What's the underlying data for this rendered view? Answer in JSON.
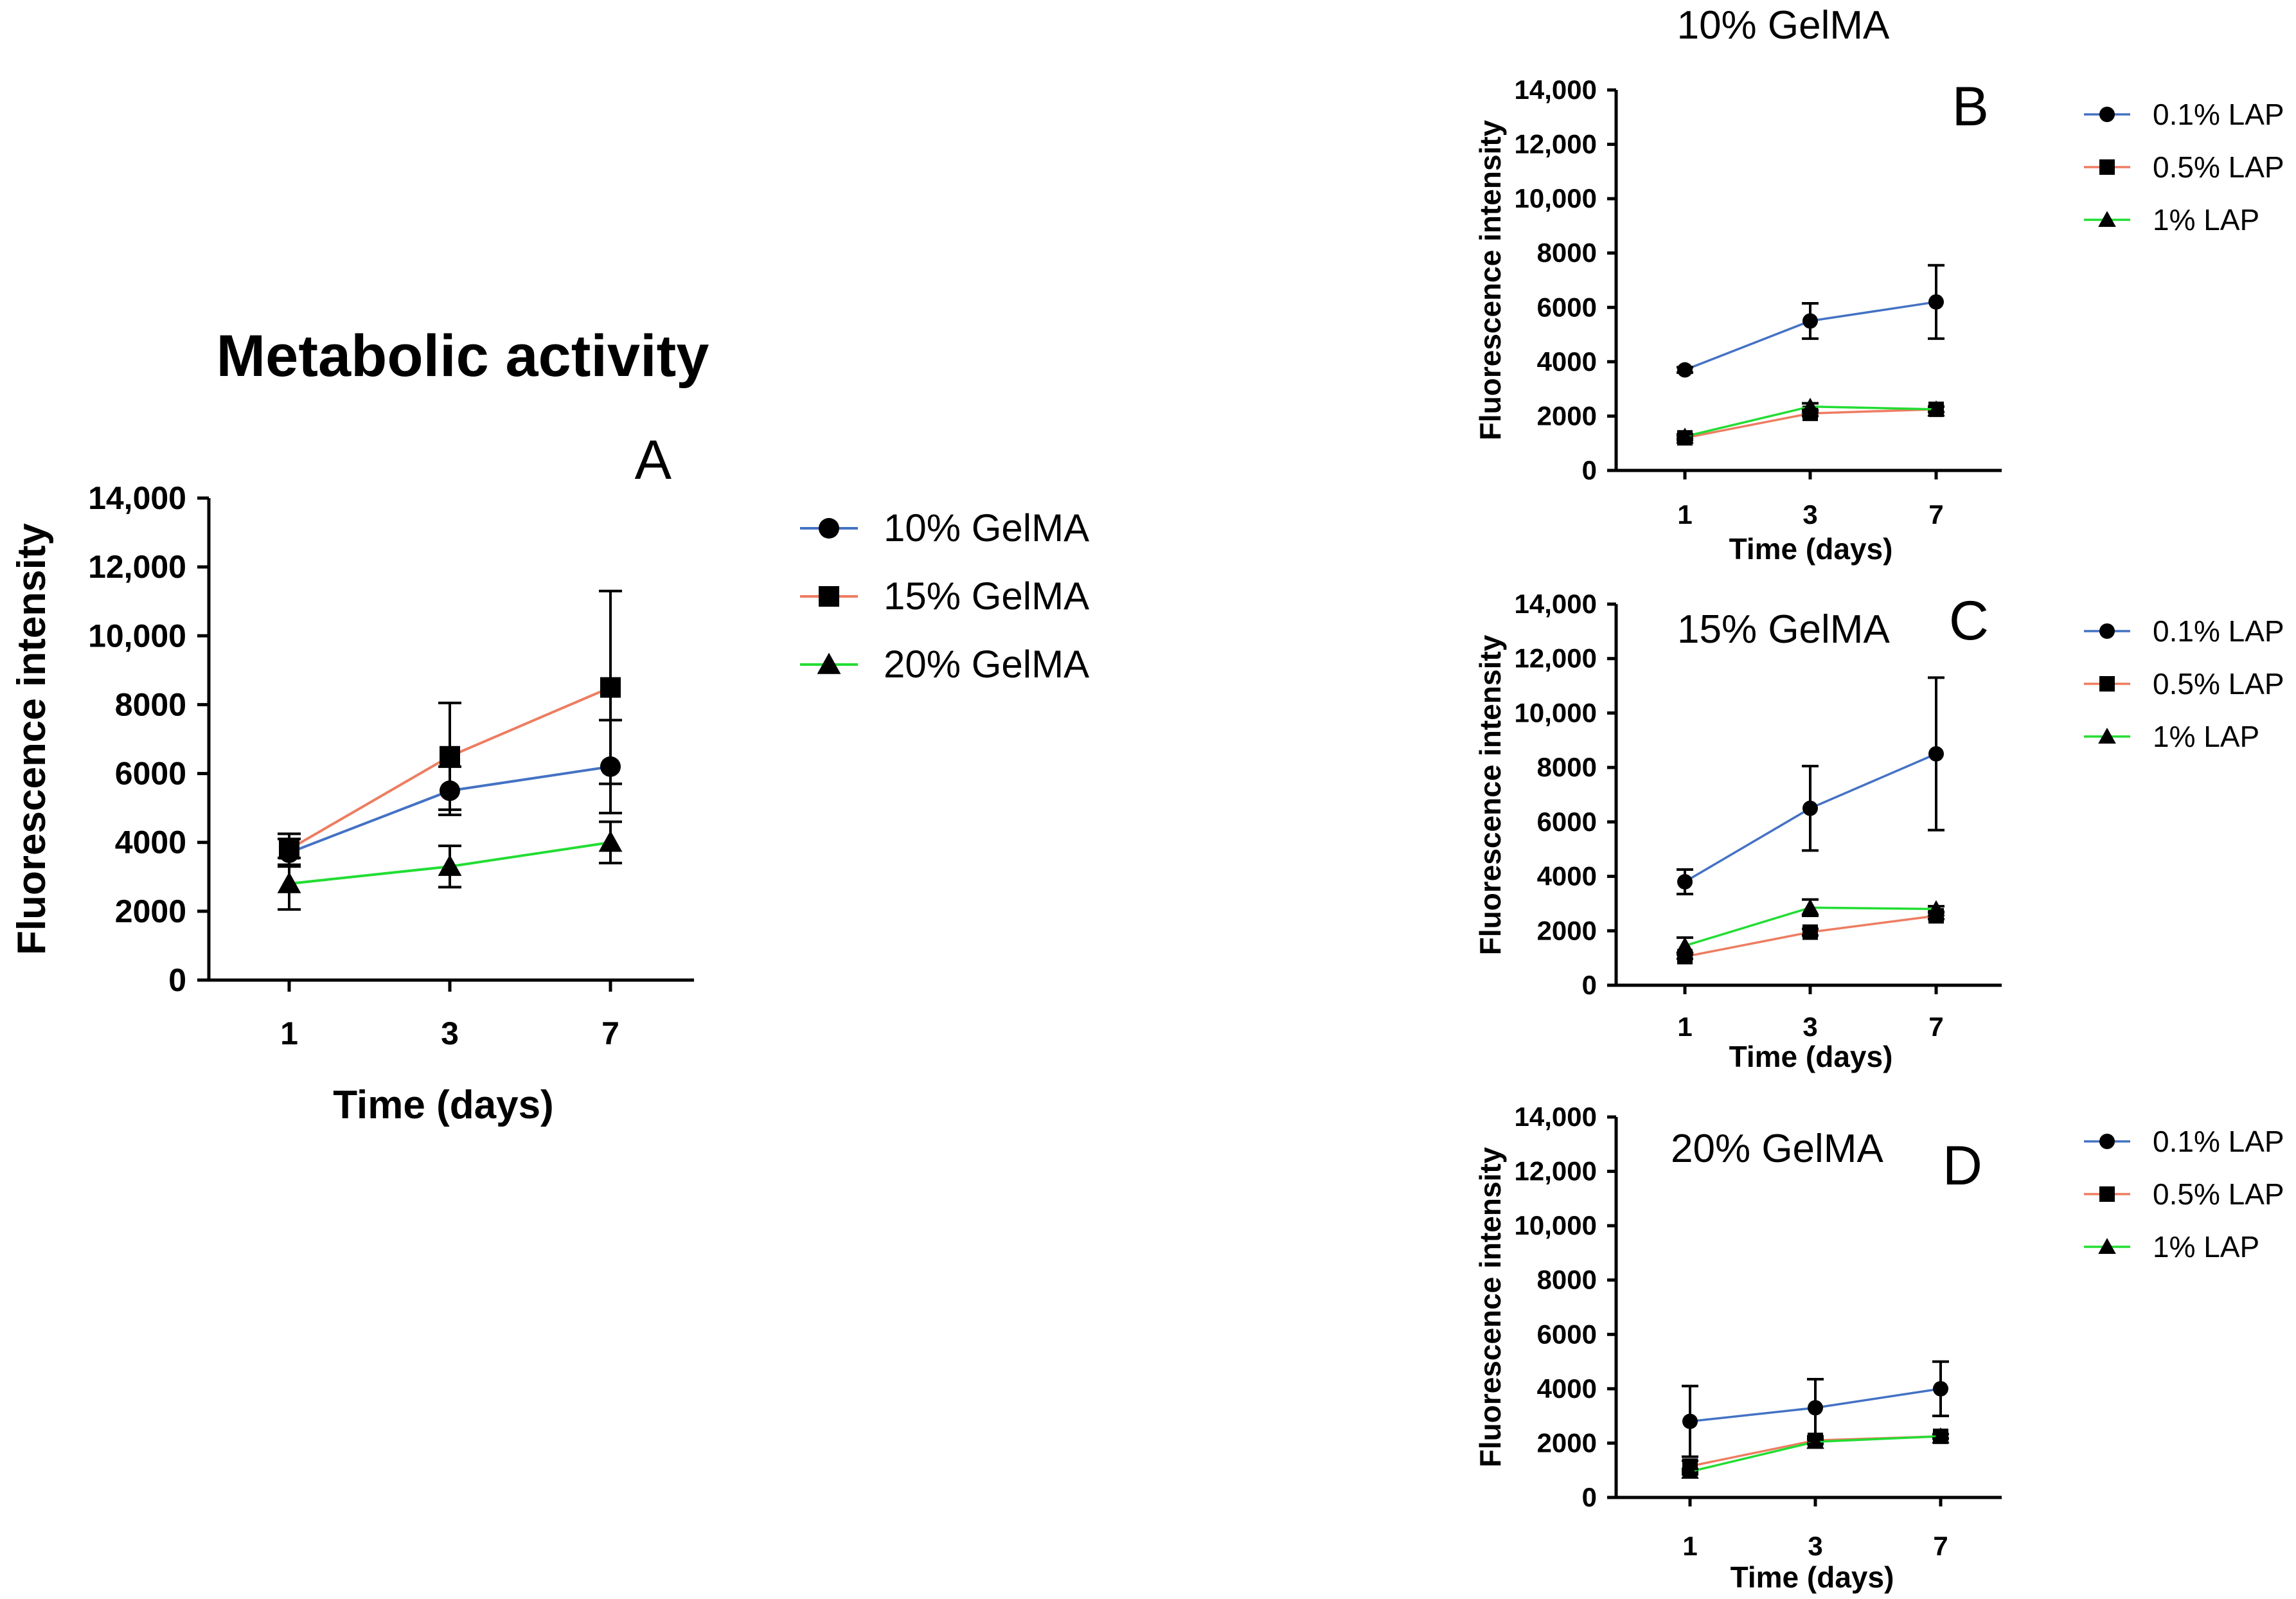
{
  "chart_data": [
    {
      "id": "A",
      "type": "line",
      "title": "Metabolic activity",
      "panel_label": "A",
      "xlabel": "Time (days)",
      "ylabel": "Fluorescence intensity",
      "categories": [
        "1",
        "3",
        "7"
      ],
      "ylim": [
        0,
        14000
      ],
      "yticks": [
        0,
        2000,
        4000,
        6000,
        8000,
        10000,
        12000,
        14000
      ],
      "ytick_labels": [
        "0",
        "2000",
        "4000",
        "6000",
        "8000",
        "10,000",
        "12,000",
        "14,000"
      ],
      "legend": "right",
      "series": [
        {
          "name": "10% GelMA",
          "color": "#4472c4",
          "marker": "circle",
          "values": [
            3700,
            5500,
            6200
          ],
          "errors": [
            400,
            700,
            1350
          ]
        },
        {
          "name": "15% GelMA",
          "color": "#ed7d61",
          "marker": "square",
          "values": [
            3800,
            6500,
            8500
          ],
          "errors": [
            450,
            1550,
            2800
          ]
        },
        {
          "name": "20% GelMA",
          "color": "#22dd33",
          "marker": "triangle",
          "values": [
            2800,
            3300,
            4000
          ],
          "errors": [
            750,
            600,
            600
          ]
        }
      ]
    },
    {
      "id": "B",
      "type": "line",
      "title": "10% GelMA",
      "panel_label": "B",
      "xlabel": "Time (days)",
      "ylabel": "Fluorescence intensity",
      "categories": [
        "1",
        "3",
        "7"
      ],
      "ylim": [
        0,
        14000
      ],
      "yticks": [
        0,
        2000,
        4000,
        6000,
        8000,
        10000,
        12000,
        14000
      ],
      "ytick_labels": [
        "0",
        "2000",
        "4000",
        "6000",
        "8000",
        "10,000",
        "12,000",
        "14,000"
      ],
      "legend": "right",
      "series": [
        {
          "name": "0.1% LAP",
          "color": "#4472c4",
          "marker": "circle",
          "values": [
            3700,
            5500,
            6200
          ],
          "errors": [
            100,
            650,
            1350
          ]
        },
        {
          "name": "0.5% LAP",
          "color": "#ed7d61",
          "marker": "square",
          "values": [
            1200,
            2100,
            2250
          ],
          "errors": [
            80,
            100,
            100
          ]
        },
        {
          "name": "1% LAP",
          "color": "#22dd33",
          "marker": "triangle",
          "values": [
            1250,
            2350,
            2250
          ],
          "errors": [
            80,
            120,
            100
          ]
        }
      ]
    },
    {
      "id": "C",
      "type": "line",
      "title": "15% GelMA",
      "panel_label": "C",
      "xlabel": "Time (days)",
      "ylabel": "Fluorescence intensity",
      "categories": [
        "1",
        "3",
        "7"
      ],
      "ylim": [
        0,
        14000
      ],
      "yticks": [
        0,
        2000,
        4000,
        6000,
        8000,
        10000,
        12000,
        14000
      ],
      "ytick_labels": [
        "0",
        "2000",
        "4000",
        "6000",
        "8000",
        "10,000",
        "12,000",
        "14,000"
      ],
      "legend": "right",
      "series": [
        {
          "name": "0.1% LAP",
          "color": "#4472c4",
          "marker": "circle",
          "values": [
            3800,
            6500,
            8500
          ],
          "errors": [
            450,
            1550,
            2800
          ]
        },
        {
          "name": "0.5% LAP",
          "color": "#ed7d61",
          "marker": "square",
          "values": [
            1050,
            1950,
            2550
          ],
          "errors": [
            80,
            120,
            120
          ]
        },
        {
          "name": "1% LAP",
          "color": "#22dd33",
          "marker": "triangle",
          "values": [
            1450,
            2850,
            2800
          ],
          "errors": [
            300,
            300,
            100
          ]
        }
      ]
    },
    {
      "id": "D",
      "type": "line",
      "title": "20% GelMA",
      "panel_label": "D",
      "xlabel": "Time (days)",
      "ylabel": "Fluorescence intensity",
      "categories": [
        "1",
        "3",
        "7"
      ],
      "ylim": [
        0,
        14000
      ],
      "yticks": [
        0,
        2000,
        4000,
        6000,
        8000,
        10000,
        12000,
        14000
      ],
      "ytick_labels": [
        "0",
        "2000",
        "4000",
        "6000",
        "8000",
        "10,000",
        "12,000",
        "14,000"
      ],
      "legend": "right",
      "series": [
        {
          "name": "0.1% LAP",
          "color": "#4472c4",
          "marker": "circle",
          "values": [
            2800,
            3300,
            4000
          ],
          "errors": [
            1300,
            1050,
            1000
          ]
        },
        {
          "name": "0.5% LAP",
          "color": "#ed7d61",
          "marker": "square",
          "values": [
            1150,
            2100,
            2250
          ],
          "errors": [
            200,
            100,
            80
          ]
        },
        {
          "name": "1% LAP",
          "color": "#22dd33",
          "marker": "triangle",
          "values": [
            950,
            2050,
            2250
          ],
          "errors": [
            100,
            80,
            80
          ]
        }
      ]
    }
  ]
}
